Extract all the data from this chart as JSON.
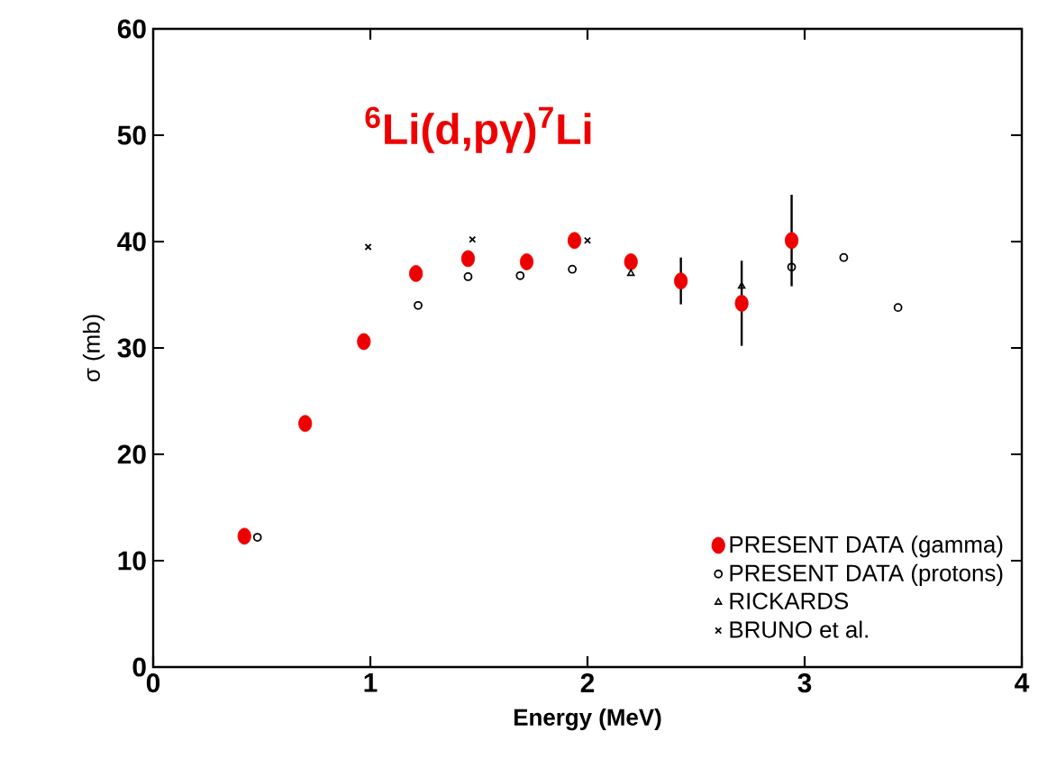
{
  "chart_data": {
    "type": "scatter",
    "title": "$^{6}$Li(d,pγ)$^{7}$Li",
    "xlabel": "Energy (MeV)",
    "ylabel": "σ (mb)",
    "xlim": [
      0,
      4
    ],
    "xticks": [
      0,
      1,
      2,
      3,
      4
    ],
    "ylim": [
      0,
      60
    ],
    "yticks": [
      0,
      10,
      20,
      30,
      40,
      50,
      60
    ],
    "grid": false,
    "legend": "bottom right",
    "series": [
      {
        "name": "PRESENT DATA (gamma)",
        "color": "#ee0000",
        "marker": "circle",
        "x": [
          0.42,
          0.7,
          0.97,
          1.21,
          1.45,
          1.72,
          1.94,
          2.2,
          2.43,
          2.71,
          2.94
        ],
        "values": [
          12.3,
          22.9,
          30.6,
          37.0,
          38.4,
          38.1,
          40.1,
          38.1,
          36.3,
          34.2,
          40.1
        ],
        "errors": [
          null,
          null,
          null,
          null,
          null,
          null,
          null,
          null,
          2.2,
          4.0,
          4.3
        ]
      },
      {
        "name": "PRESENT DATA (protons)",
        "color": "#000000",
        "marker": "circle_open",
        "x": [
          0.48,
          1.22,
          1.45,
          1.69,
          1.93,
          2.94,
          3.18,
          3.43
        ],
        "values": [
          12.2,
          34.0,
          36.7,
          36.8,
          37.4,
          37.6,
          38.5,
          33.8
        ]
      },
      {
        "name": "RICKARDS",
        "color": "#000000",
        "marker": "triangle",
        "x": [
          2.2,
          2.71
        ],
        "values": [
          37.0,
          35.8
        ]
      },
      {
        "name": "BRUNO et al.",
        "color": "#000000",
        "marker": "cross",
        "x": [
          0.99,
          1.47,
          2.0
        ],
        "values": [
          39.5,
          40.2,
          40.1
        ]
      }
    ]
  }
}
